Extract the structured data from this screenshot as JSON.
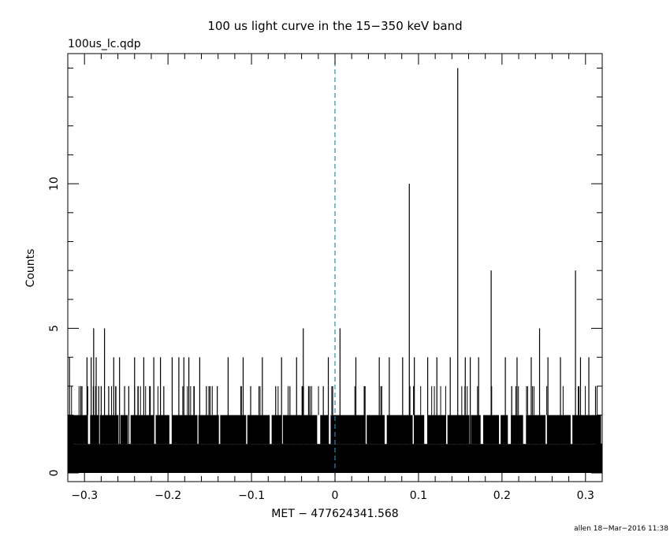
{
  "chart_data": {
    "type": "bar",
    "title": "100 us light curve in the 15−350 keV band",
    "file_label": "100us_lc.qdp",
    "xlabel": "MET − 477624341.568",
    "ylabel": "Counts",
    "xlim": [
      -0.32,
      0.32
    ],
    "ylim": [
      -0.3,
      14.5
    ],
    "x_ticks": [
      -0.3,
      -0.2,
      -0.1,
      0,
      0.1,
      0.2,
      0.3
    ],
    "x_tick_labels": [
      "−0.3",
      "−0.2",
      "−0.1",
      "0",
      "0.1",
      "0.2",
      "0.3"
    ],
    "y_ticks": [
      0,
      5,
      10
    ],
    "y_tick_labels": [
      "0",
      "5",
      "10"
    ],
    "trigger_line_x": 0,
    "bin_width": 0.0001,
    "baseline": "most bins 0–2 counts across the full range",
    "series": [
      {
        "x": [
          -0.318,
          -0.303,
          -0.297,
          -0.292,
          -0.289,
          -0.286,
          -0.283,
          -0.28,
          -0.276,
          -0.271,
          -0.265,
          -0.258,
          -0.252,
          -0.247,
          -0.24,
          -0.236,
          -0.229,
          -0.222,
          -0.217,
          -0.209,
          -0.205,
          -0.195,
          -0.187,
          -0.181,
          -0.175,
          -0.169,
          -0.162,
          -0.154,
          -0.141,
          -0.128,
          -0.11,
          -0.101,
          -0.087,
          -0.071,
          -0.064,
          -0.054,
          -0.046,
          -0.038,
          -0.03,
          -0.014,
          -0.008,
          0.006,
          0.025,
          0.036,
          0.053,
          0.065,
          0.081,
          0.089,
          0.095,
          0.111,
          0.122,
          0.138,
          0.147,
          0.156,
          0.162,
          0.172,
          0.187,
          0.204,
          0.218,
          0.235,
          0.245,
          0.255,
          0.27,
          0.288,
          0.294,
          0.304,
          0.312
        ],
        "y": [
          4,
          3,
          4,
          4,
          5,
          4,
          3,
          3,
          5,
          3,
          4,
          4,
          3,
          3,
          4,
          3,
          4,
          3,
          4,
          4,
          3,
          4,
          4,
          4,
          4,
          3,
          4,
          3,
          3,
          4,
          4,
          3,
          4,
          3,
          4,
          3,
          4,
          5,
          3,
          3,
          4,
          5,
          4,
          3,
          4,
          4,
          4,
          10,
          4,
          4,
          4,
          4,
          14,
          4,
          4,
          4,
          7,
          4,
          4,
          4,
          5,
          4,
          4,
          7,
          4,
          4,
          3
        ]
      }
    ]
  },
  "footer_text": "allen 18−Mar−2016 11:38"
}
